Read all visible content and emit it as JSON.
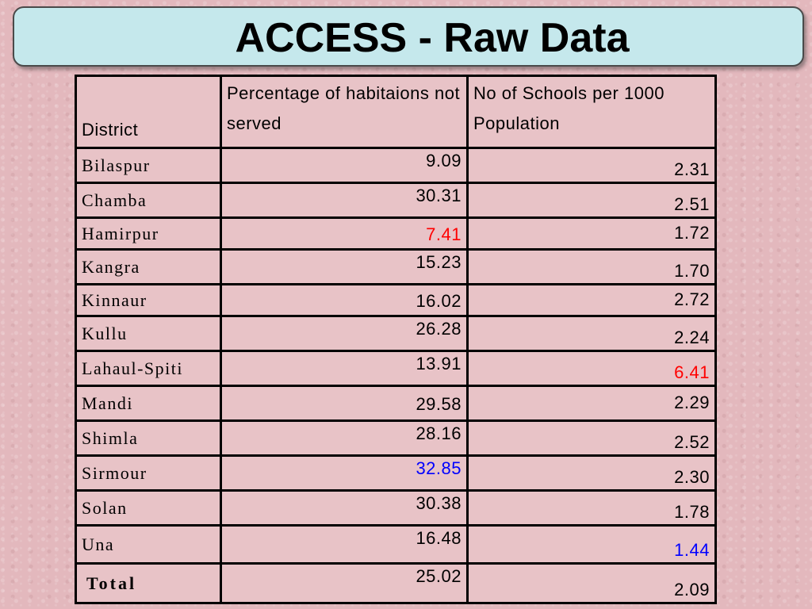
{
  "slide": {
    "title": "ACCESS - Raw Data"
  },
  "table": {
    "headers": {
      "district": "District",
      "pct": "Percentage of habitaions not served",
      "schools": "No of Schools per 1000 Population"
    },
    "rows": [
      {
        "district": "Bilaspur",
        "pct": "9.09",
        "schools": "2.31"
      },
      {
        "district": "Chamba",
        "pct": "30.31",
        "schools": "2.51"
      },
      {
        "district": "Hamirpur",
        "pct": "7.41",
        "schools": "1.72"
      },
      {
        "district": "Kangra",
        "pct": "15.23",
        "schools": "1.70"
      },
      {
        "district": "Kinnaur",
        "pct": "16.02",
        "schools": "2.72"
      },
      {
        "district": "Kullu",
        "pct": "26.28",
        "schools": "2.24"
      },
      {
        "district": "Lahaul-Spiti",
        "pct": "13.91",
        "schools": "6.41"
      },
      {
        "district": "Mandi",
        "pct": "29.58",
        "schools": "2.29"
      },
      {
        "district": "Shimla",
        "pct": "28.16",
        "schools": "2.52"
      },
      {
        "district": "Sirmour",
        "pct": "32.85",
        "schools": "2.30"
      },
      {
        "district": "Solan",
        "pct": "30.38",
        "schools": "1.78"
      },
      {
        "district": "Una",
        "pct": "16.48",
        "schools": "1.44"
      },
      {
        "district": "Total",
        "pct": "25.02",
        "schools": "2.09"
      }
    ]
  },
  "colors": {
    "highlight_min": "#ff0000",
    "highlight_max": "#0000ff",
    "title_bg": "#c5e8ec"
  }
}
